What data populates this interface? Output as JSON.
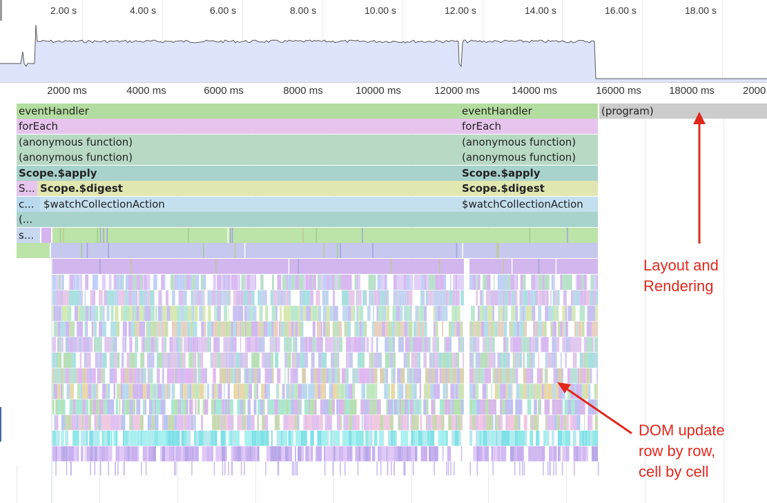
{
  "overview": {
    "tick_labels": [
      "2.00 s",
      "4.00 s",
      "6.00 s",
      "8.00 s",
      "10.00 s",
      "12.00 s",
      "14.00 s",
      "16.00 s",
      "18.00 s"
    ]
  },
  "ruler": {
    "tick_labels": [
      "2000 ms",
      "4000 ms",
      "6000 ms",
      "8000 ms",
      "10000 ms",
      "12000 ms",
      "14000 ms",
      "16000 ms",
      "18000 ms",
      "2000"
    ]
  },
  "flame": {
    "rows": [
      {
        "label_a": "eventHandler",
        "label_b": "eventHandler",
        "color": "#b3dda0"
      },
      {
        "label_a": "forEach",
        "label_b": "forEach",
        "color": "#e6c4ee"
      },
      {
        "label_a": "(anonymous function)",
        "label_b": "(anonymous function)",
        "color": "#b8d9c4"
      },
      {
        "label_a": "(anonymous function)",
        "label_b": "(anonymous function)",
        "color": "#b8d9c4"
      },
      {
        "label_a": "Scope.$apply",
        "label_b": "Scope.$apply",
        "color": "#a8d2cc"
      },
      {
        "label_a": "Scope.$digest",
        "label_b": "Scope.$digest",
        "color": "#e2e6b0"
      },
      {
        "label_a": "$watchCollectionAction",
        "label_b": "$watchCollectionAction",
        "color": "#c4e0ee"
      }
    ],
    "small_labels": [
      "S...",
      "c...",
      "(...",
      "s..."
    ],
    "program_label": "(program)"
  },
  "annotations": {
    "layout_rendering": "Layout and\nRendering",
    "dom_update": "DOM update\nrow by row,\ncell by cell"
  },
  "colors": {
    "annotation": "#e0281e",
    "overview_fill": "#dde4fb",
    "overview_line": "#555555",
    "program": "#cccccc",
    "gridline": "#e6e6e6"
  }
}
